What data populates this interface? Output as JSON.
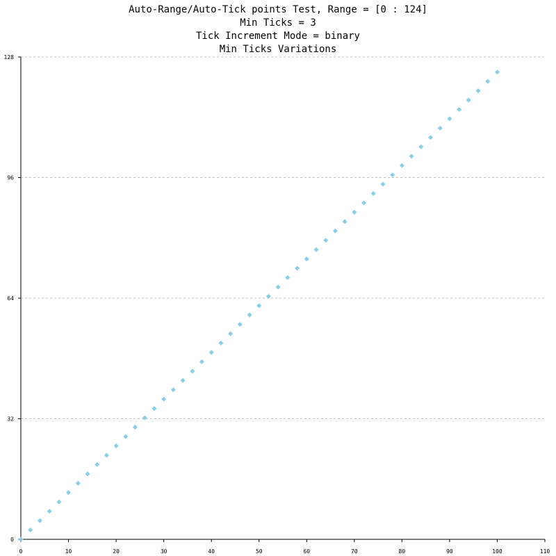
{
  "chart_data": {
    "type": "scatter",
    "title_lines": [
      "Auto-Range/Auto-Tick points Test, Range = [0 : 124]",
      "Min Ticks = 3",
      "Tick Increment Mode = binary",
      "Min Ticks Variations"
    ],
    "xlabel": "",
    "ylabel": "",
    "xlim": [
      0,
      110
    ],
    "ylim": [
      0,
      128
    ],
    "x_ticks": [
      0,
      10,
      20,
      30,
      40,
      50,
      60,
      70,
      80,
      90,
      100,
      110
    ],
    "y_ticks": [
      0,
      32,
      64,
      96,
      128
    ],
    "grid": "horizontal-dashed",
    "marker": "diamond",
    "color": "#87ceeb",
    "series": [
      {
        "x": [
          0,
          2,
          4,
          6,
          8,
          10,
          12,
          14,
          16,
          18,
          20,
          22,
          24,
          26,
          28,
          30,
          32,
          34,
          36,
          38,
          40,
          42,
          44,
          46,
          48,
          50,
          52,
          54,
          56,
          58,
          60,
          62,
          64,
          66,
          68,
          70,
          72,
          74,
          76,
          78,
          80,
          82,
          84,
          86,
          88,
          90,
          92,
          94,
          96,
          98,
          100
        ],
        "y": [
          0,
          2.48,
          4.96,
          7.44,
          9.92,
          12.4,
          14.88,
          17.36,
          19.84,
          22.32,
          24.8,
          27.28,
          29.76,
          32.24,
          34.72,
          37.2,
          39.68,
          42.16,
          44.64,
          47.12,
          49.6,
          52.08,
          54.56,
          57.04,
          59.52,
          62,
          64.48,
          66.96,
          69.44,
          71.92,
          74.4,
          76.88,
          79.36,
          81.84,
          84.32,
          86.8,
          89.28,
          91.76,
          94.24,
          96.72,
          99.2,
          101.68,
          104.16,
          106.64,
          109.12,
          111.6,
          114.08,
          116.56,
          119.04,
          121.52,
          124
        ]
      }
    ]
  }
}
